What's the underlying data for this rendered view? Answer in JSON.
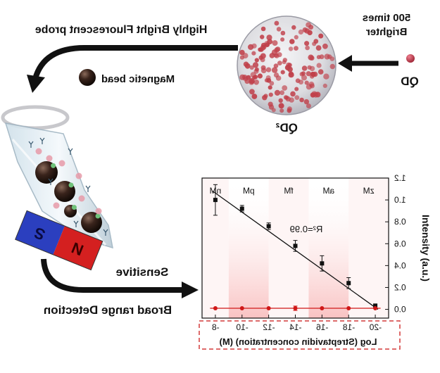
{
  "labels": {
    "probe": "Highly Bright Fluorescent probe",
    "brighter_line1": "500 times",
    "brighter_line2": "Brighter",
    "qd": "QD",
    "qd2": "QD²",
    "magnetic_bead": "Magnetic bead",
    "sensitive": "Sensitive",
    "broad_range": "Broad range Detection",
    "magnet_s": "S",
    "magnet_n": "N"
  },
  "colors": {
    "qd_red": "#c0404a",
    "bead_dark": "#2a1a14",
    "magnet_blue": "#2b3fbf",
    "magnet_red": "#d42020",
    "range_red": "#d43a3a",
    "line_red": "#d01818"
  },
  "chart_data": {
    "type": "line",
    "mirrored": true,
    "xlabel": "Log (Streptavidin concentration) (M)",
    "ylabel": "Intensity (a.u.)",
    "xlim": [
      -21,
      -7
    ],
    "ylim": [
      -0.08,
      1.2
    ],
    "x_ticks": [
      -8,
      -10,
      -12,
      -14,
      -16,
      -18,
      -20
    ],
    "x_tick_labels": [
      "-8",
      "-10",
      "-12",
      "-14",
      "-16",
      "-18",
      "-20"
    ],
    "y_ticks": [
      0.0,
      0.2,
      0.4,
      0.6,
      0.8,
      1.0,
      1.2
    ],
    "y_tick_labels": [
      "0.0",
      "0.2",
      "0.4",
      "0.6",
      "0.8",
      "1.0",
      "1.2"
    ],
    "unit_bands": [
      {
        "label": "nM",
        "x_from": -7,
        "x_to": -9
      },
      {
        "label": "pM",
        "x_from": -9,
        "x_to": -12
      },
      {
        "label": "fM",
        "x_from": -12,
        "x_to": -15
      },
      {
        "label": "aM",
        "x_from": -15,
        "x_to": -18
      },
      {
        "label": "zM",
        "x_from": -18,
        "x_to": -21
      }
    ],
    "annotation": "R²=0.99",
    "series": [
      {
        "color": "#111111",
        "x": [
          -8,
          -10,
          -12,
          -14,
          -16,
          -18,
          -20
        ],
        "y": [
          1.0,
          0.92,
          0.76,
          0.58,
          0.42,
          0.24,
          0.03
        ],
        "err": [
          0.14,
          0.03,
          0.03,
          0.05,
          0.07,
          0.05,
          0.02
        ]
      },
      {
        "color": "#d01818",
        "x": [
          -8,
          -10,
          -12,
          -14,
          -16,
          -18,
          -20
        ],
        "y": [
          0.01,
          0.01,
          0.01,
          0.01,
          0.01,
          0.01,
          0.01
        ],
        "err": [
          0.0,
          0.0,
          0.0,
          0.02,
          0.0,
          0.0,
          0.0
        ]
      }
    ],
    "fit_line": {
      "x": [
        -7.8,
        -20.2
      ],
      "y": [
        1.08,
        0.0
      ]
    }
  }
}
